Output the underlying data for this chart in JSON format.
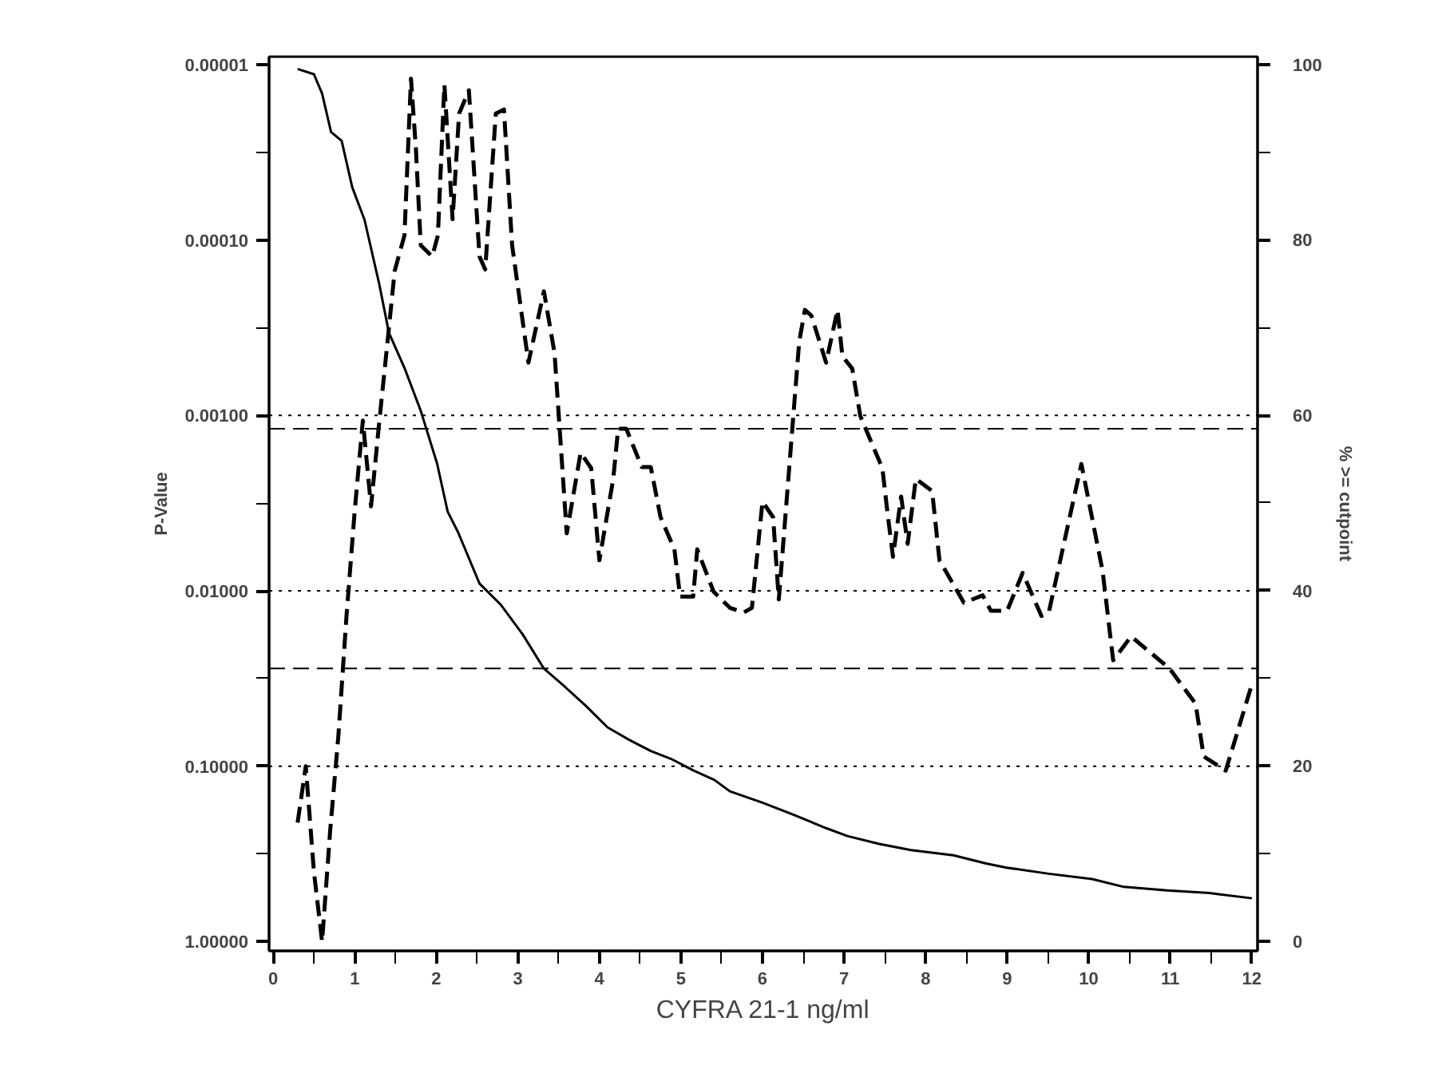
{
  "chart_data": {
    "type": "line",
    "xlabel": "CYFRA 21-1 ng/ml",
    "ylabel": "P-Value",
    "y2label": "% >= cutpoint",
    "log": "y",
    "xlim": [
      -0.05,
      12.07
    ],
    "ylim": [
      1.13,
      9e-06
    ],
    "y2lim": [
      -1.1,
      100.9
    ],
    "xticks": [
      0,
      {
        "value": 0.5,
        "label": null
      },
      1,
      {
        "value": 1.5,
        "label": null
      },
      2,
      {
        "value": 2.5,
        "label": null
      },
      3,
      {
        "value": 3.5,
        "label": null
      },
      4,
      {
        "value": 4.5,
        "label": null
      },
      5,
      {
        "value": 5.5,
        "label": null
      },
      6,
      {
        "value": 6.5,
        "label": null
      },
      7,
      {
        "value": 7.5,
        "label": null
      },
      8,
      {
        "value": 8.5,
        "label": null
      },
      9,
      {
        "value": 9.5,
        "label": null
      },
      10,
      {
        "value": 10.5,
        "label": null
      },
      11,
      {
        "value": 11.5,
        "label": null
      },
      12
    ],
    "yticks": [
      {
        "value": 1e-05,
        "label": "0.00001"
      },
      {
        "value": 3.16e-05,
        "label": null
      },
      {
        "value": 0.0001,
        "label": "0.00010"
      },
      {
        "value": 0.000316,
        "label": null
      },
      {
        "value": 0.001,
        "label": "0.00100"
      },
      {
        "value": 0.00316,
        "label": null
      },
      {
        "value": 0.01,
        "label": "0.01000"
      },
      {
        "value": 0.0316,
        "label": null
      },
      {
        "value": 0.1,
        "label": "0.10000"
      },
      {
        "value": 0.316,
        "label": null
      },
      {
        "value": 1,
        "label": "1.00000"
      }
    ],
    "y2ticks": [
      0,
      {
        "value": 10,
        "label": null
      },
      20,
      {
        "value": 30,
        "label": null
      },
      40,
      {
        "value": 50,
        "label": null
      },
      60,
      {
        "value": 70,
        "label": null
      },
      80,
      {
        "value": 90,
        "label": null
      },
      100
    ],
    "ref_lines": [
      {
        "axis": "y",
        "value": 0.001,
        "line_style": "dotted",
        "color": "#000000"
      },
      {
        "axis": "y",
        "value": 0.01,
        "line_style": "dotted",
        "color": "#000000"
      },
      {
        "axis": "y",
        "value": 0.1,
        "line_style": "dotted",
        "color": "#000000"
      },
      {
        "axis": "y",
        "value": 0.00119,
        "line_style": "dashed",
        "color": "#000000"
      },
      {
        "axis": "y",
        "value": 0.0277,
        "line_style": "dashed",
        "color": "#000000"
      }
    ],
    "series": [
      {
        "color": "#000000",
        "line_style": "dashed",
        "x": [
          0.3,
          0.4,
          0.5,
          0.6,
          0.7,
          0.8,
          0.9,
          1.0,
          1.1,
          1.2,
          1.3,
          1.4,
          1.49,
          1.61,
          1.69,
          1.75,
          1.81,
          1.95,
          2.02,
          2.1,
          2.2,
          2.28,
          2.4,
          2.53,
          2.6,
          2.73,
          2.83,
          2.93,
          3.13,
          3.32,
          3.45,
          3.6,
          3.77,
          3.9,
          4.0,
          4.17,
          4.23,
          4.33,
          4.52,
          4.63,
          4.75,
          4.92,
          4.99,
          5.15,
          5.2,
          5.4,
          5.6,
          5.77,
          5.87,
          6.0,
          6.13,
          6.2,
          6.45,
          6.52,
          6.6,
          6.78,
          6.92,
          6.98,
          7.1,
          7.2,
          7.47,
          7.53,
          7.6,
          7.7,
          7.78,
          7.88,
          8.08,
          8.17,
          8.47,
          8.7,
          8.8,
          9.0,
          9.19,
          9.42,
          9.51,
          9.91,
          10.17,
          10.3,
          10.52,
          10.99,
          11.31,
          11.41,
          11.68,
          12.0
        ],
        "values": [
          0.21,
          0.1,
          0.4,
          1.0,
          0.23,
          0.067,
          0.0138,
          0.0035,
          0.00107,
          0.0033,
          0.0011,
          0.00039,
          0.00015,
          9.4e-05,
          1.2e-05,
          3e-05,
          0.000107,
          0.000124,
          9.4e-05,
          1.3e-05,
          7.6e-05,
          1.9e-05,
          1.4e-05,
          0.000124,
          0.000147,
          1.9e-05,
          1.8e-05,
          0.000107,
          0.0005,
          0.000196,
          0.00044,
          0.0047,
          0.00163,
          0.002,
          0.0067,
          0.0023,
          0.00119,
          0.00119,
          0.00197,
          0.00197,
          0.0038,
          0.0058,
          0.0108,
          0.0108,
          0.0058,
          0.0101,
          0.0125,
          0.0133,
          0.0125,
          0.0031,
          0.0038,
          0.0112,
          0.00038,
          0.00025,
          0.00027,
          0.0005,
          0.00025,
          0.00046,
          0.00054,
          0.00101,
          0.002,
          0.0035,
          0.0064,
          0.0029,
          0.0054,
          0.0023,
          0.0027,
          0.0067,
          0.0117,
          0.0106,
          0.013,
          0.013,
          0.0079,
          0.0139,
          0.0133,
          0.00189,
          0.0077,
          0.0249,
          0.0182,
          0.0277,
          0.044,
          0.088,
          0.106,
          0.0342
        ]
      },
      {
        "color": "#000000",
        "line_style": "solid",
        "axis": "y2",
        "x": [
          0.3,
          0.5,
          0.6,
          0.71,
          0.84,
          0.97,
          1.12,
          1.3,
          1.42,
          1.61,
          1.81,
          2.01,
          2.14,
          2.27,
          2.53,
          2.79,
          3.06,
          3.32,
          3.58,
          3.84,
          4.1,
          4.36,
          4.63,
          4.88,
          5.15,
          5.41,
          5.6,
          6.0,
          6.39,
          6.78,
          7.04,
          7.43,
          7.82,
          8.34,
          8.73,
          8.99,
          9.51,
          10.04,
          10.43,
          10.96,
          11.48,
          12.0
        ],
        "values": [
          99.5,
          98.9,
          96.7,
          92.3,
          91.3,
          86,
          82.3,
          75,
          69.4,
          65.4,
          60.5,
          54.5,
          49,
          46.6,
          40.8,
          38.4,
          35,
          31.1,
          29,
          26.8,
          24.4,
          23,
          21.7,
          20.8,
          19.5,
          18.4,
          17.1,
          15.8,
          14.4,
          12.9,
          12,
          11.1,
          10.4,
          9.8,
          8.9,
          8.4,
          7.7,
          7.1,
          6.2,
          5.8,
          5.5,
          4.9
        ]
      }
    ]
  }
}
